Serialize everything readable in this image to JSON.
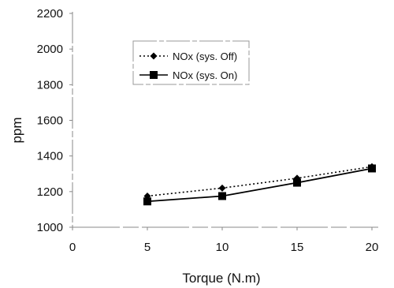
{
  "chart_data": {
    "type": "line",
    "title": "",
    "xlabel": "Torque (N.m)",
    "ylabel": "ppm",
    "xlim": [
      0,
      20
    ],
    "ylim": [
      1000,
      2200
    ],
    "x_ticks": [
      0,
      5,
      10,
      15,
      20
    ],
    "y_ticks": [
      1000,
      1200,
      1400,
      1600,
      1800,
      2000,
      2200
    ],
    "grid": false,
    "legend_position": "top-left",
    "series": [
      {
        "name": "NOx (sys. Off)",
        "x": [
          5,
          10,
          15,
          20
        ],
        "values": [
          1175,
          1220,
          1275,
          1340
        ],
        "line_style": "dotted",
        "marker": "diamond",
        "color": "#000000"
      },
      {
        "name": "NOx (sys. On)",
        "x": [
          5,
          10,
          15,
          20
        ],
        "values": [
          1145,
          1175,
          1250,
          1330
        ],
        "line_style": "solid",
        "marker": "square",
        "color": "#000000"
      }
    ]
  }
}
